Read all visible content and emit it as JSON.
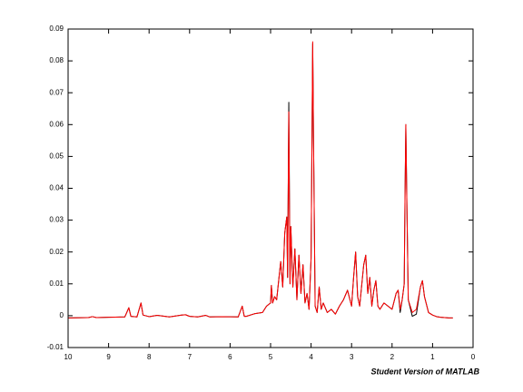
{
  "chart_data": {
    "type": "line",
    "annotation": "Student Version of MATLAB",
    "x": [
      10,
      9.5,
      9.4,
      9.3,
      9,
      8.6,
      8.5,
      8.45,
      8.3,
      8.2,
      8.15,
      8.0,
      7.8,
      7.5,
      7.2,
      7.1,
      7.0,
      6.8,
      6.6,
      6.5,
      6.2,
      5.8,
      5.7,
      5.65,
      5.6,
      5.4,
      5.2,
      5.1,
      5.0,
      4.98,
      4.95,
      4.9,
      4.85,
      4.8,
      4.75,
      4.7,
      4.65,
      4.6,
      4.58,
      4.55,
      4.52,
      4.5,
      4.45,
      4.4,
      4.35,
      4.3,
      4.25,
      4.2,
      4.15,
      4.1,
      4.05,
      4.0,
      3.98,
      3.96,
      3.94,
      3.9,
      3.85,
      3.8,
      3.75,
      3.7,
      3.6,
      3.5,
      3.4,
      3.3,
      3.2,
      3.1,
      3.0,
      2.95,
      2.9,
      2.85,
      2.8,
      2.7,
      2.65,
      2.6,
      2.55,
      2.5,
      2.45,
      2.4,
      2.35,
      2.3,
      2.2,
      2.1,
      2.0,
      1.9,
      1.85,
      1.8,
      1.75,
      1.7,
      1.68,
      1.66,
      1.64,
      1.6,
      1.5,
      1.4,
      1.3,
      1.25,
      1.2,
      1.1,
      1.0,
      0.9,
      0.8,
      0.7,
      0.6,
      0.5
    ],
    "series": [
      {
        "color": "#000000",
        "values": [
          -0.0007,
          -0.0006,
          -0.0003,
          -0.0006,
          -0.0005,
          -0.0004,
          0.0025,
          -0.0002,
          -0.0004,
          0.004,
          0.0002,
          -0.0003,
          0.0001,
          -0.0004,
          0.0002,
          0.0003,
          -0.0002,
          -0.0004,
          0.0001,
          -0.0004,
          -0.0003,
          -0.0004,
          0.003,
          -0.0002,
          -0.0002,
          0.0006,
          0.001,
          0.003,
          0.004,
          0.0095,
          0.004,
          0.006,
          0.005,
          0.011,
          0.017,
          0.009,
          0.026,
          0.031,
          0.012,
          0.067,
          0.01,
          0.028,
          0.009,
          0.021,
          0.005,
          0.019,
          0.007,
          0.016,
          0.004,
          0.007,
          0.002,
          0.018,
          0.051,
          0.0855,
          0.056,
          0.003,
          0.001,
          0.009,
          0.002,
          0.004,
          0.001,
          0.002,
          0.0005,
          0.003,
          0.005,
          0.008,
          0.003,
          0.012,
          0.02,
          0.006,
          0.003,
          0.016,
          0.019,
          0.007,
          0.012,
          0.003,
          0.008,
          0.011,
          0.003,
          0.002,
          0.004,
          0.003,
          0.002,
          0.007,
          0.008,
          0.001,
          0.005,
          0.01,
          0.038,
          0.06,
          0.04,
          0.005,
          -0.0002,
          0.0005,
          0.009,
          0.011,
          0.006,
          0.001,
          0.0002,
          -0.0003,
          -0.0005,
          -0.0006,
          -0.0007,
          -0.0007
        ]
      },
      {
        "color": "#ff0000",
        "values": [
          -0.0007,
          -0.0006,
          -0.0003,
          -0.0006,
          -0.0005,
          -0.0004,
          0.0025,
          -0.0002,
          -0.0004,
          0.004,
          0.0002,
          -0.0003,
          0.0001,
          -0.0004,
          0.0002,
          0.0003,
          -0.0002,
          -0.0004,
          0.0001,
          -0.0004,
          -0.0003,
          -0.0004,
          0.003,
          -0.0002,
          -0.0002,
          0.0006,
          0.001,
          0.003,
          0.004,
          0.0095,
          0.004,
          0.006,
          0.005,
          0.011,
          0.017,
          0.009,
          0.026,
          0.031,
          0.012,
          0.064,
          0.01,
          0.028,
          0.009,
          0.021,
          0.005,
          0.019,
          0.007,
          0.016,
          0.004,
          0.007,
          0.002,
          0.018,
          0.051,
          0.086,
          0.056,
          0.003,
          0.001,
          0.009,
          0.002,
          0.004,
          0.001,
          0.002,
          0.0005,
          0.003,
          0.005,
          0.008,
          0.003,
          0.012,
          0.02,
          0.006,
          0.003,
          0.016,
          0.019,
          0.007,
          0.012,
          0.003,
          0.008,
          0.011,
          0.003,
          0.002,
          0.004,
          0.003,
          0.002,
          0.007,
          0.008,
          0.002,
          0.005,
          0.01,
          0.038,
          0.06,
          0.04,
          0.005,
          0.001,
          0.002,
          0.009,
          0.011,
          0.006,
          0.001,
          0.0002,
          -0.0003,
          -0.0005,
          -0.0006,
          -0.0007,
          -0.0007
        ]
      }
    ],
    "xlim": [
      10,
      0
    ],
    "xticks": [
      10,
      9,
      8,
      7,
      6,
      5,
      4,
      3,
      2,
      1,
      0
    ],
    "ylim": [
      -0.01,
      0.09
    ],
    "yticks": [
      -0.01,
      0,
      0.01,
      0.02,
      0.03,
      0.04,
      0.05,
      0.06,
      0.07,
      0.08,
      0.09
    ],
    "grid": false
  }
}
